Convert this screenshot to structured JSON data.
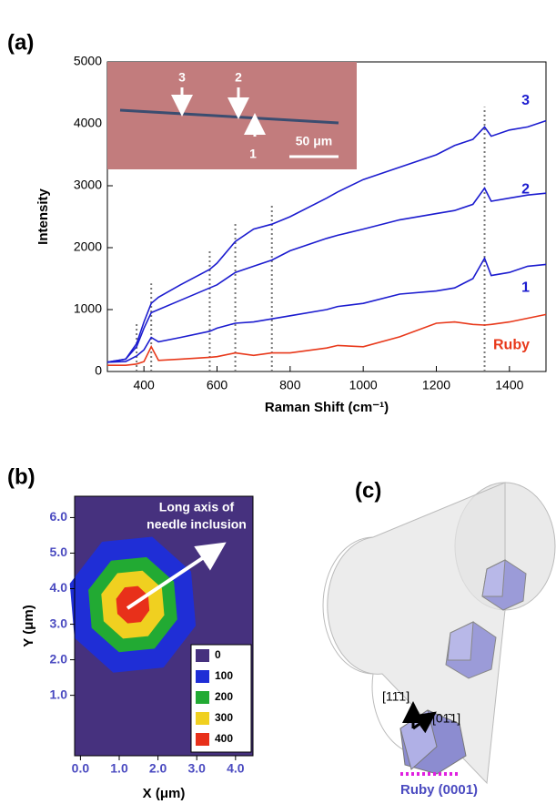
{
  "chart_data": [
    {
      "type": "line",
      "panel_label": "(a)",
      "x_label": "Raman Shift (cm⁻¹)",
      "y_label": "Intensity",
      "x": [
        300,
        350,
        380,
        400,
        420,
        440,
        500,
        580,
        600,
        650,
        700,
        750,
        800,
        900,
        930,
        1000,
        1100,
        1200,
        1250,
        1300,
        1332,
        1350,
        1400,
        1450,
        1500
      ],
      "series": [
        {
          "name": "3",
          "color": "#1c1ccf",
          "values": [
            150,
            200,
            450,
            800,
            1100,
            1200,
            1400,
            1650,
            1750,
            2100,
            2300,
            2380,
            2500,
            2800,
            2900,
            3100,
            3300,
            3500,
            3650,
            3750,
            3950,
            3800,
            3900,
            3950,
            4050
          ]
        },
        {
          "name": "2",
          "color": "#1c1ccf",
          "values": [
            150,
            200,
            400,
            700,
            950,
            1000,
            1150,
            1350,
            1400,
            1600,
            1700,
            1800,
            1950,
            2150,
            2200,
            2300,
            2450,
            2550,
            2600,
            2700,
            2960,
            2750,
            2800,
            2850,
            2880
          ]
        },
        {
          "name": "1",
          "color": "#1c1ccf",
          "values": [
            150,
            160,
            250,
            350,
            550,
            480,
            550,
            650,
            700,
            780,
            800,
            850,
            900,
            1000,
            1050,
            1100,
            1250,
            1300,
            1350,
            1500,
            1830,
            1550,
            1600,
            1700,
            1730
          ]
        },
        {
          "name": "Ruby",
          "color": "#e8381a",
          "values": [
            100,
            100,
            120,
            160,
            400,
            180,
            200,
            230,
            240,
            300,
            260,
            300,
            300,
            380,
            420,
            400,
            560,
            780,
            800,
            760,
            750,
            760,
            800,
            860,
            920
          ]
        }
      ],
      "peak_positions": [
        380,
        420,
        580,
        650,
        750,
        1332
      ],
      "xlim": [
        300,
        1500
      ],
      "xticks": [
        400,
        600,
        800,
        1000,
        1200,
        1400
      ],
      "ylim": [
        0,
        5000
      ],
      "yticks": [
        0,
        1000,
        2000,
        3000,
        4000,
        5000
      ],
      "inset": {
        "point_labels": [
          "3",
          "2",
          "1"
        ],
        "scale_bar": "50 μm"
      }
    },
    {
      "type": "contour",
      "panel_label": "(b)",
      "x_label": "X (μm)",
      "y_label": "Y (μm)",
      "annotation_lines": [
        "Long axis of",
        "needle inclusion"
      ],
      "levels": [
        0,
        100,
        200,
        300,
        400
      ],
      "colors": [
        "#46317e",
        "#1f2ed6",
        "#22aa33",
        "#f0d020",
        "#e8301a"
      ],
      "xlim": [
        -0.15,
        4.45
      ],
      "xticks": [
        {
          "value": 0,
          "label": "0.0"
        },
        {
          "value": 1,
          "label": "1.0"
        },
        {
          "value": 2,
          "label": "2.0"
        },
        {
          "value": 3,
          "label": "3.0"
        },
        {
          "value": 4,
          "label": "4.0"
        }
      ],
      "ylim": [
        -0.7,
        6.6
      ],
      "yticks": [
        {
          "value": 1,
          "label": "1.0"
        },
        {
          "value": 2,
          "label": "2.0"
        },
        {
          "value": 3,
          "label": "3.0"
        },
        {
          "value": 4,
          "label": "4.0"
        },
        {
          "value": 5,
          "label": "5.0"
        },
        {
          "value": 6,
          "label": "6.0"
        }
      ]
    }
  ],
  "diagram": {
    "panel_label": "(c)",
    "direction_1": "[11̄1]",
    "direction_2": "[01̄1]",
    "caption": "Ruby (0001)"
  }
}
